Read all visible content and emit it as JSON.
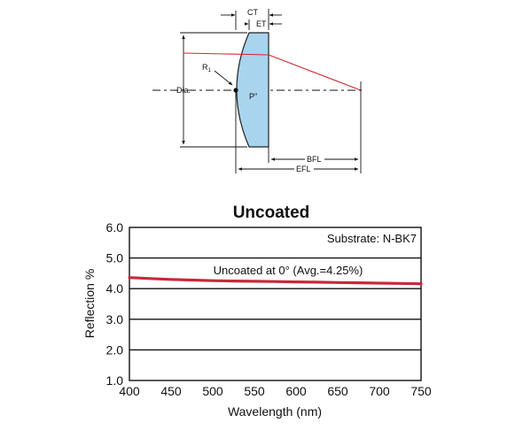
{
  "diagram": {
    "labels": {
      "ct": "CT",
      "et": "ET",
      "r1": "R",
      "r1_sub": "1",
      "dia": "Dia.",
      "principal_point": "P\"",
      "bfl": "BFL",
      "efl": "EFL"
    },
    "colors": {
      "lens_fill": "#a8d4ee",
      "lens_stroke": "#222222",
      "ray": "#cc2a36",
      "lines": "#111111"
    }
  },
  "chart_data": {
    "type": "line",
    "title": "Uncoated",
    "xlabel": "Wavelength (nm)",
    "ylabel": "Reflection %",
    "xlim": [
      400,
      750
    ],
    "ylim": [
      1.0,
      6.0
    ],
    "x_ticks": [
      400,
      450,
      500,
      550,
      600,
      650,
      700,
      750
    ],
    "y_ticks": [
      "1.0",
      "2.0",
      "3.0",
      "4.0",
      "5.0",
      "6.0"
    ],
    "grid": {
      "horizontal": true,
      "vertical": false
    },
    "annotations": {
      "substrate": "Substrate: N-BK7",
      "curve_label": "Uncoated at 0°  (Avg.=4.25%)"
    },
    "series": [
      {
        "color": "#c8283a",
        "x": [
          400,
          425,
          450,
          475,
          500,
          525,
          550,
          575,
          600,
          625,
          650,
          675,
          700,
          725,
          750
        ],
        "y": [
          4.36,
          4.33,
          4.3,
          4.28,
          4.26,
          4.25,
          4.24,
          4.23,
          4.22,
          4.21,
          4.2,
          4.19,
          4.18,
          4.17,
          4.16
        ]
      }
    ]
  }
}
